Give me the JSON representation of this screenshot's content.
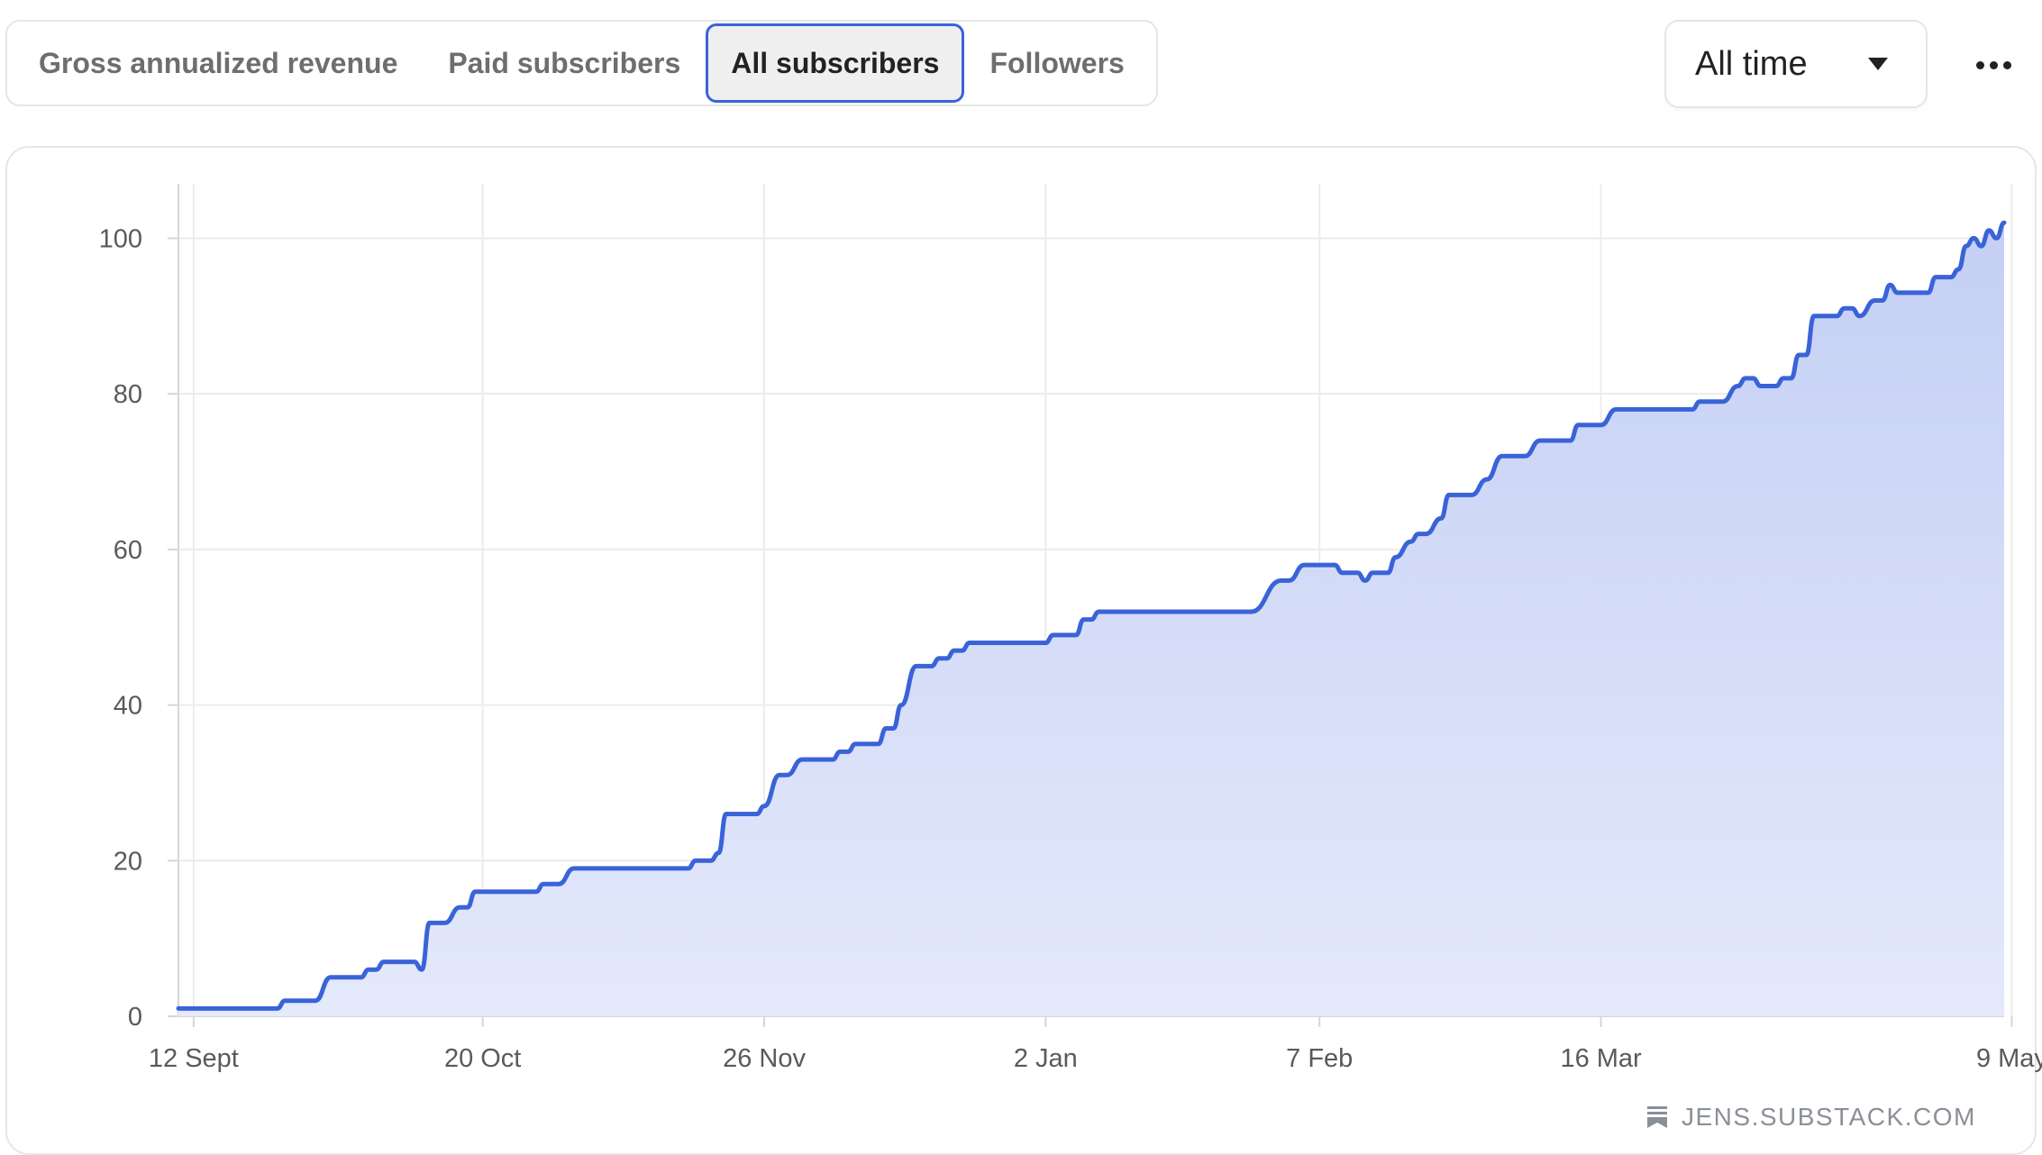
{
  "tabs": [
    {
      "label": "Gross annualized revenue",
      "active": false
    },
    {
      "label": "Paid subscribers",
      "active": false
    },
    {
      "label": "All subscribers",
      "active": true
    },
    {
      "label": "Followers",
      "active": false
    }
  ],
  "range": {
    "selected": "All time"
  },
  "more_icon": "more-horizontal-icon",
  "watermark": {
    "icon": "substack-bookmark-icon",
    "text": "JENS.SUBSTACK.COM"
  },
  "colors": {
    "accent": "#3a63d8",
    "area_top": "#c4cff4",
    "area_bottom": "#e4e9fb"
  },
  "chart_data": {
    "type": "area",
    "title": "",
    "xlabel": "",
    "ylabel": "",
    "x_tick_labels": [
      "12 Sept",
      "20 Oct",
      "26 Nov",
      "2 Jan",
      "7 Feb",
      "16 Mar",
      "9 May"
    ],
    "x_tick_days": [
      0,
      38,
      75,
      112,
      148,
      185,
      239
    ],
    "y_ticks": [
      0,
      20,
      40,
      60,
      80,
      100
    ],
    "ylim": [
      0,
      107
    ],
    "xlim_days": [
      -2,
      238
    ],
    "grid": true,
    "series": [
      {
        "name": "",
        "points": [
          [
            -2,
            1
          ],
          [
            11,
            1
          ],
          [
            12,
            2
          ],
          [
            16,
            2
          ],
          [
            18,
            5
          ],
          [
            22,
            5
          ],
          [
            23,
            6
          ],
          [
            24,
            6
          ],
          [
            25,
            7
          ],
          [
            29,
            7
          ],
          [
            30,
            6
          ],
          [
            31,
            12
          ],
          [
            33,
            12
          ],
          [
            35,
            14
          ],
          [
            36,
            14
          ],
          [
            37,
            16
          ],
          [
            45,
            16
          ],
          [
            46,
            17
          ],
          [
            48,
            17
          ],
          [
            50,
            19
          ],
          [
            65,
            19
          ],
          [
            66,
            20
          ],
          [
            68,
            20
          ],
          [
            69,
            21
          ],
          [
            70,
            26
          ],
          [
            74,
            26
          ],
          [
            75,
            27
          ],
          [
            77,
            31
          ],
          [
            78,
            31
          ],
          [
            80,
            33
          ],
          [
            84,
            33
          ],
          [
            85,
            34
          ],
          [
            86,
            34
          ],
          [
            87,
            35
          ],
          [
            90,
            35
          ],
          [
            91,
            37
          ],
          [
            92,
            37
          ],
          [
            93,
            40
          ],
          [
            95,
            45
          ],
          [
            97,
            45
          ],
          [
            98,
            46
          ],
          [
            99,
            46
          ],
          [
            100,
            47
          ],
          [
            101,
            47
          ],
          [
            102,
            48
          ],
          [
            112,
            48
          ],
          [
            113,
            49
          ],
          [
            116,
            49
          ],
          [
            117,
            51
          ],
          [
            118,
            51
          ],
          [
            119,
            52
          ],
          [
            139,
            52
          ],
          [
            143,
            56
          ],
          [
            144,
            56
          ],
          [
            146,
            58
          ],
          [
            150,
            58
          ],
          [
            151,
            57
          ],
          [
            153,
            57
          ],
          [
            154,
            56
          ],
          [
            155,
            57
          ],
          [
            157,
            57
          ],
          [
            158,
            59
          ],
          [
            160,
            61
          ],
          [
            161,
            62
          ],
          [
            162,
            62
          ],
          [
            164,
            64
          ],
          [
            165,
            67
          ],
          [
            168,
            67
          ],
          [
            170,
            69
          ],
          [
            172,
            72
          ],
          [
            175,
            72
          ],
          [
            177,
            74
          ],
          [
            181,
            74
          ],
          [
            182,
            76
          ],
          [
            185,
            76
          ],
          [
            187,
            78
          ],
          [
            197,
            78
          ],
          [
            198,
            79
          ],
          [
            201,
            79
          ],
          [
            203,
            81
          ],
          [
            204,
            82
          ],
          [
            205,
            82
          ],
          [
            206,
            81
          ],
          [
            208,
            81
          ],
          [
            209,
            82
          ],
          [
            210,
            82
          ],
          [
            211,
            85
          ],
          [
            212,
            85
          ],
          [
            213,
            90
          ],
          [
            216,
            90
          ],
          [
            217,
            91
          ],
          [
            218,
            91
          ],
          [
            219,
            90
          ],
          [
            221,
            92
          ],
          [
            222,
            92
          ],
          [
            223,
            94
          ],
          [
            224,
            93
          ],
          [
            228,
            93
          ],
          [
            229,
            95
          ],
          [
            231,
            95
          ],
          [
            232,
            96
          ],
          [
            233,
            99
          ],
          [
            234,
            100
          ],
          [
            235,
            99
          ],
          [
            236,
            101
          ],
          [
            237,
            100
          ],
          [
            238,
            102
          ]
        ]
      }
    ]
  }
}
